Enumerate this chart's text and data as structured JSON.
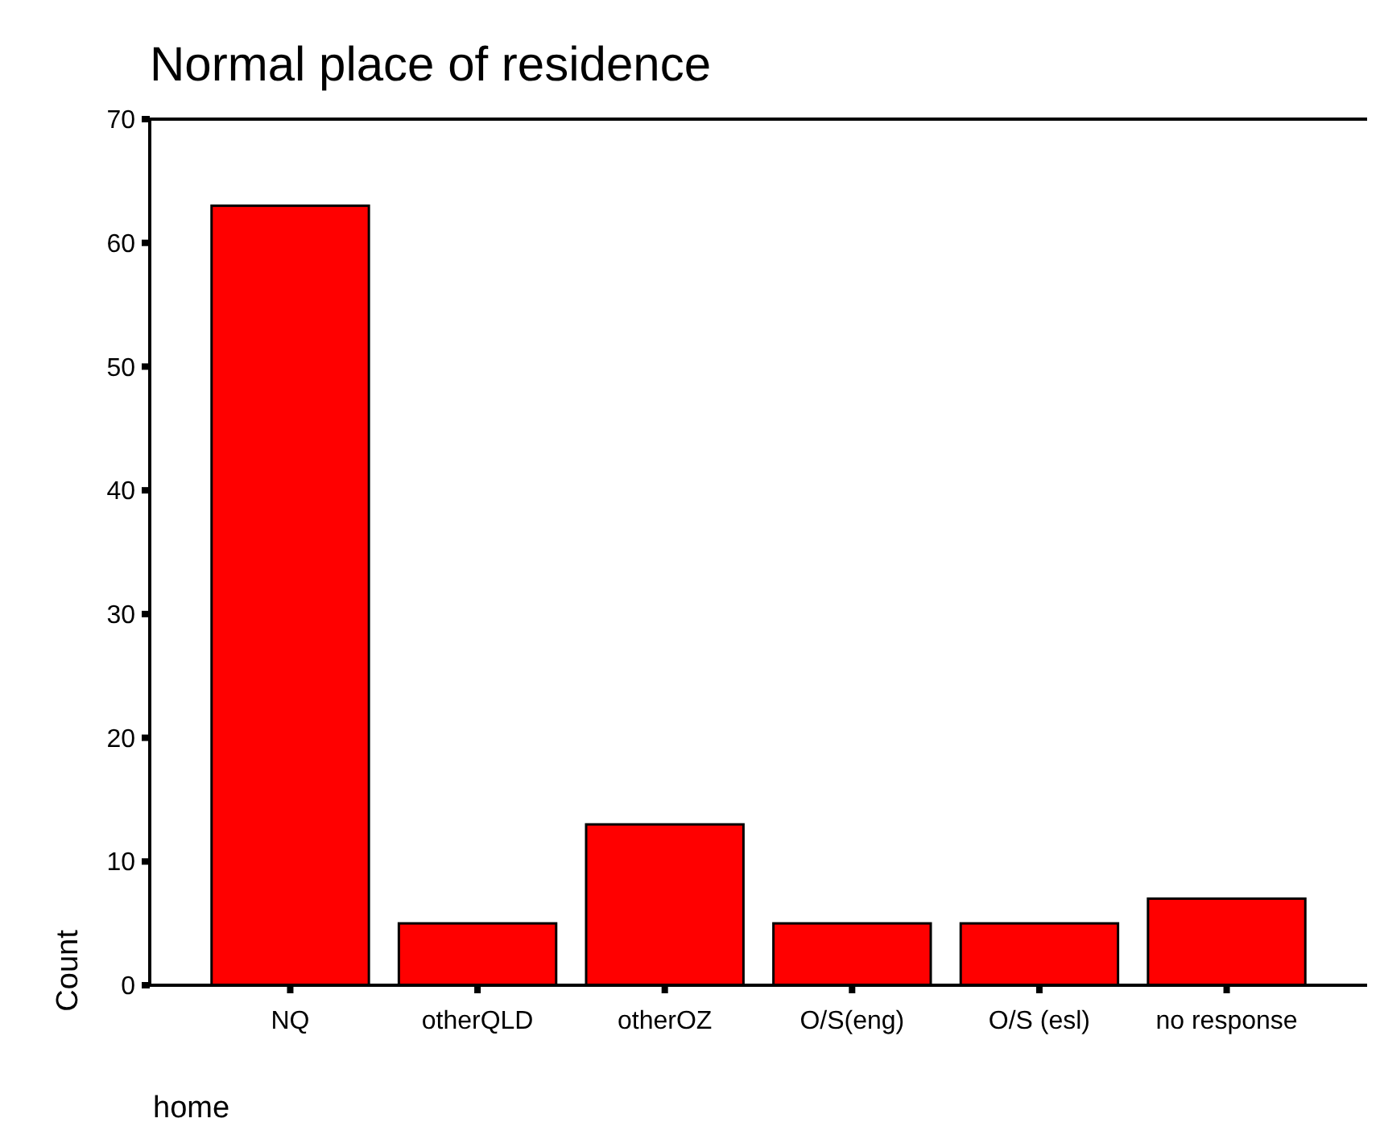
{
  "chart_data": {
    "type": "bar",
    "title": "Normal place of residence",
    "xlabel": "home",
    "ylabel": "Count",
    "categories": [
      "NQ",
      "otherQLD",
      "otherOZ",
      "O/S(eng)",
      "O/S (esl)",
      "no response"
    ],
    "values": [
      63,
      5,
      13,
      5,
      5,
      7
    ],
    "color": "#ff0000",
    "ylim": [
      0,
      70
    ],
    "yticks": [
      0,
      10,
      20,
      30,
      40,
      50,
      60,
      70
    ],
    "grid": false
  }
}
